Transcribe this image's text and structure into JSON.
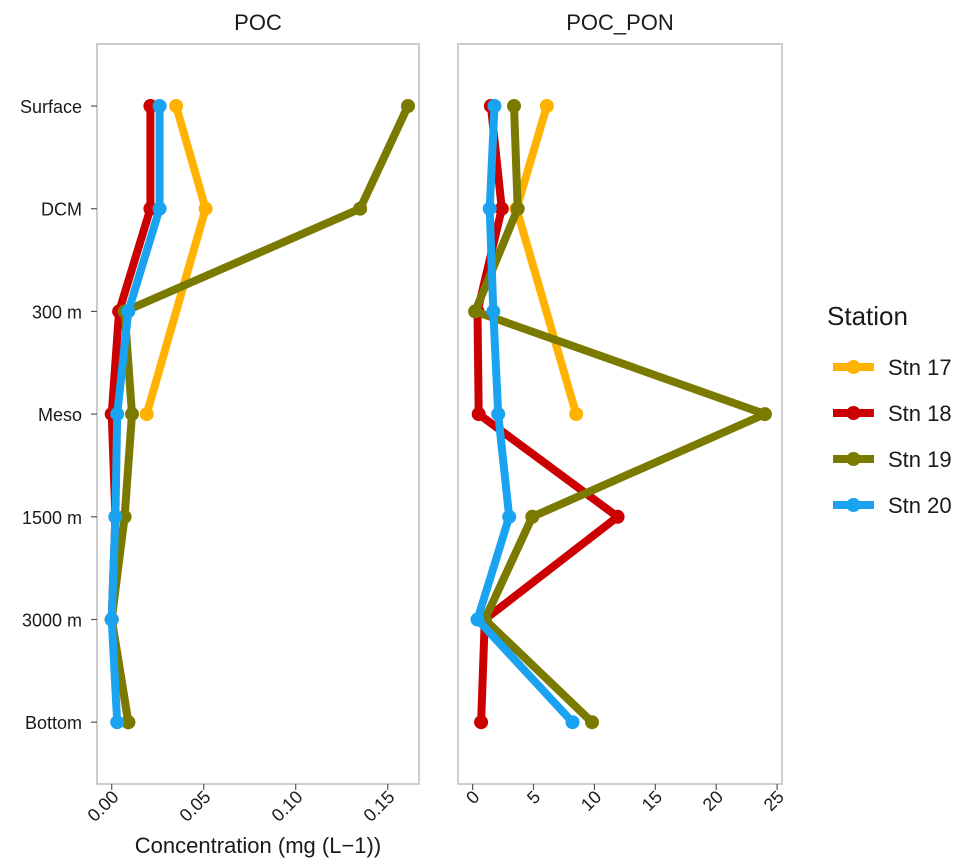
{
  "chart_data": {
    "type": "line",
    "xlabel": "Concentration (mg (L−1))",
    "categories": [
      "Surface",
      "DCM",
      "300 m",
      "Meso",
      "1500 m",
      "3000 m",
      "Bottom"
    ],
    "legend": {
      "title": "Station",
      "placement": "right",
      "entries": [
        "Stn 17",
        "Stn 18",
        "Stn 19",
        "Stn 20"
      ]
    },
    "series_colors": {
      "Stn 17": "#FFB300",
      "Stn 18": "#CC0000",
      "Stn 19": "#7A7A00",
      "Stn 20": "#1AA3F0"
    },
    "panels": [
      {
        "title": "POC",
        "xlim": [
          -0.008,
          0.167
        ],
        "xticks": [
          0.0,
          0.05,
          0.1,
          0.15
        ],
        "xtick_labels": [
          "0.00",
          "0.05",
          "0.10",
          "0.15"
        ],
        "series": [
          {
            "name": "Stn 17",
            "values": [
              0.035,
              0.051,
              null,
              0.019,
              null,
              null,
              null
            ]
          },
          {
            "name": "Stn 18",
            "values": [
              0.021,
              0.021,
              0.004,
              0.0,
              0.002,
              0.0,
              0.009
            ]
          },
          {
            "name": "Stn 19",
            "values": [
              0.161,
              0.135,
              0.007,
              0.011,
              0.007,
              0.0,
              0.009
            ]
          },
          {
            "name": "Stn 20",
            "values": [
              0.026,
              0.026,
              0.009,
              0.003,
              0.002,
              0.0,
              0.003
            ]
          }
        ]
      },
      {
        "title": "POC_PON",
        "xlim": [
          -1.2,
          25.4
        ],
        "xticks": [
          0,
          5,
          10,
          15,
          20,
          25
        ],
        "xtick_labels": [
          "0",
          "5",
          "10",
          "15",
          "20",
          "25"
        ],
        "series": [
          {
            "name": "Stn 17",
            "values": [
              6.1,
              3.6,
              null,
              8.5,
              null,
              null,
              null
            ]
          },
          {
            "name": "Stn 18",
            "values": [
              1.5,
              2.4,
              0.4,
              0.5,
              11.9,
              1.0,
              0.7
            ]
          },
          {
            "name": "Stn 19",
            "values": [
              3.4,
              3.7,
              0.2,
              24.0,
              4.9,
              1.0,
              9.8
            ]
          },
          {
            "name": "Stn 20",
            "values": [
              1.8,
              1.4,
              1.7,
              2.1,
              3.0,
              0.4,
              8.2
            ]
          }
        ]
      }
    ],
    "grid": false
  }
}
